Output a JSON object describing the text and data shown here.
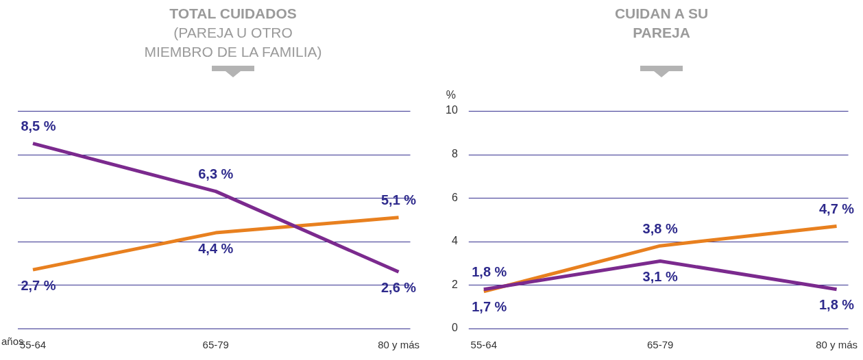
{
  "chart_data": [
    {
      "type": "line",
      "title": "TOTAL CUIDADOS",
      "subtitle": "(PAREJA U OTRO MIEMBRO DE LA FAMILIA)",
      "xlabel": "años",
      "categories": [
        "55-64",
        "65-79",
        "80 y más"
      ],
      "series": [
        {
          "color": "#7b2a8e",
          "values": [
            8.5,
            6.3,
            2.6
          ],
          "value_labels": [
            "8,5 %",
            "6,3 %",
            "2,6 %"
          ]
        },
        {
          "color": "#e8801f",
          "values": [
            2.7,
            4.4,
            5.1
          ],
          "value_labels": [
            "2,7 %",
            "4,4 %",
            "5,1 %"
          ]
        }
      ],
      "ylim": [
        0,
        10
      ],
      "yticks": [
        0,
        2,
        4,
        6,
        8,
        10
      ],
      "grid": "y",
      "tick_labels": "x"
    },
    {
      "type": "line",
      "title": "CUIDAN A SU PAREJA",
      "ylabel": "%",
      "categories": [
        "55-64",
        "65-79",
        "80 y más"
      ],
      "series": [
        {
          "color": "#7b2a8e",
          "values": [
            1.8,
            3.1,
            1.8
          ],
          "value_labels": [
            "1,8 %",
            "3,1 %",
            "1,8 %"
          ]
        },
        {
          "color": "#e8801f",
          "values": [
            1.7,
            3.8,
            4.7
          ],
          "value_labels": [
            "1,7 %",
            "3,8 %",
            "4,7 %"
          ]
        }
      ],
      "ylim": [
        0,
        10
      ],
      "yticks": [
        0,
        2,
        4,
        6,
        8,
        10
      ],
      "grid": "y"
    }
  ]
}
